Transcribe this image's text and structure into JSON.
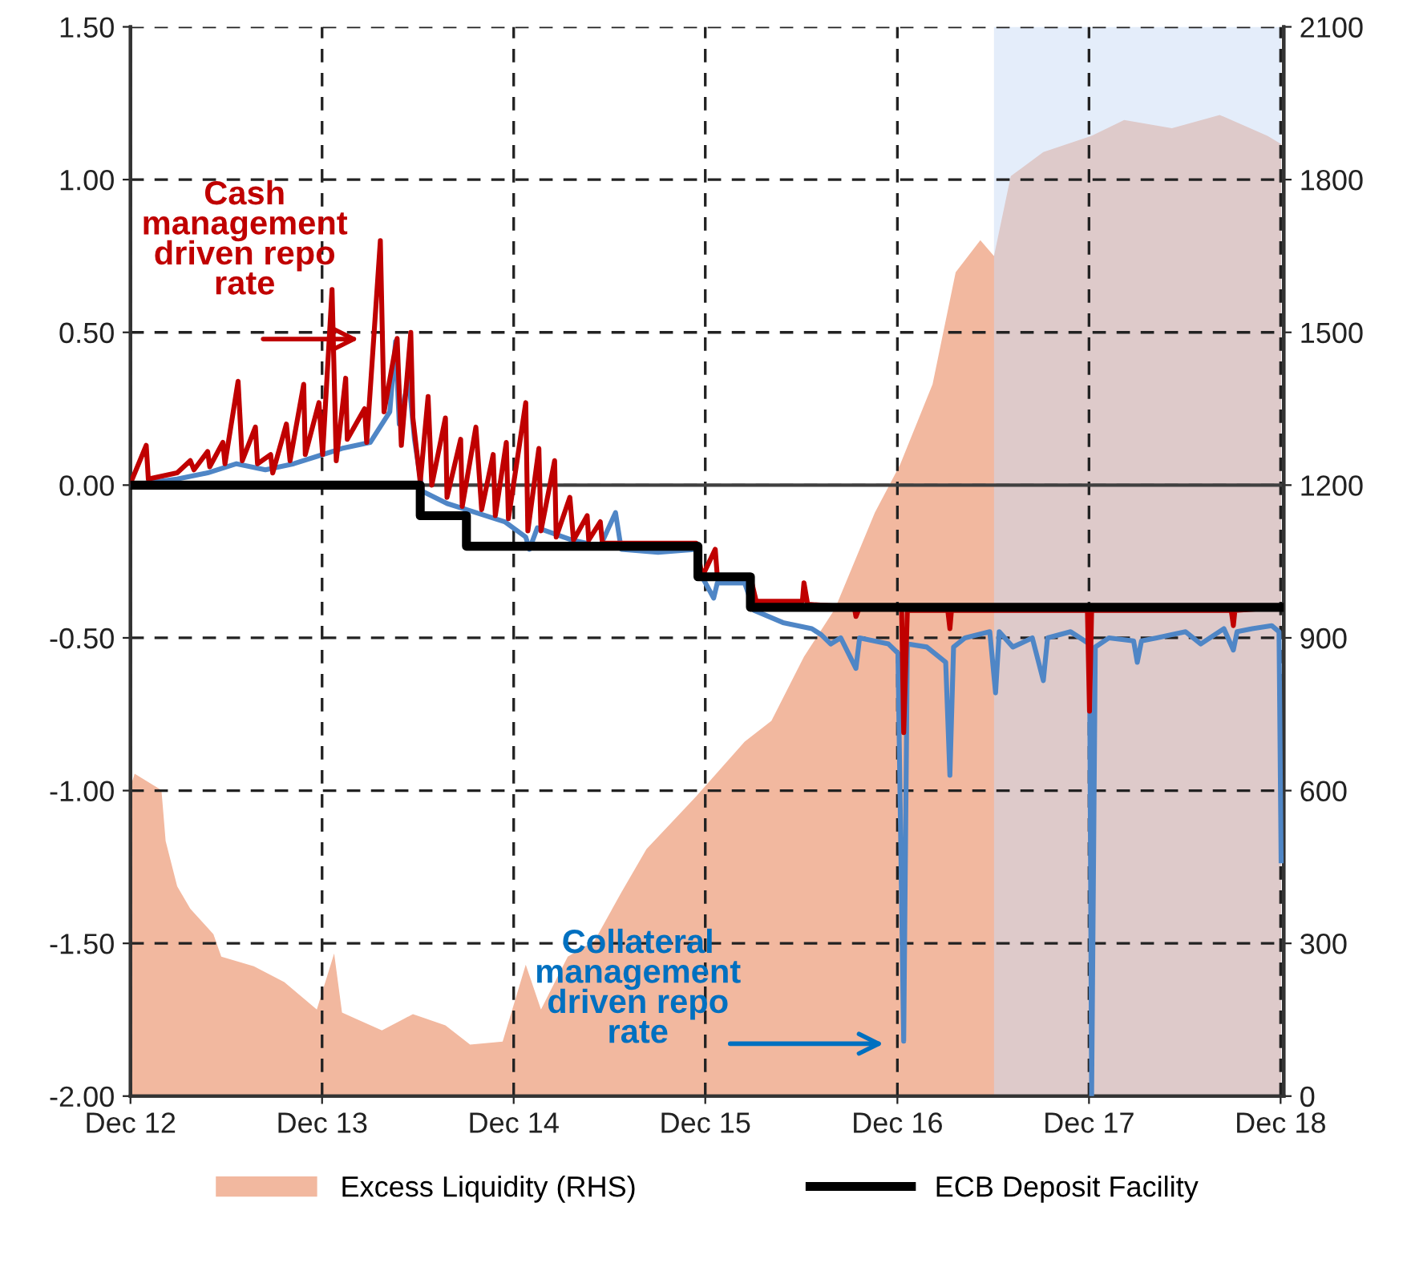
{
  "chart_data": {
    "type": "line",
    "xlim": [
      "2012-12-31",
      "2019-01-06"
    ],
    "xticks": [
      {
        "value": "2012-12-31",
        "label": "Dec 12"
      },
      {
        "value": "2013-12-31",
        "label": "Dec 13"
      },
      {
        "value": "2014-12-31",
        "label": "Dec 14"
      },
      {
        "value": "2015-12-31",
        "label": "Dec 15"
      },
      {
        "value": "2016-12-31",
        "label": "Dec 16"
      },
      {
        "value": "2017-12-31",
        "label": "Dec 17"
      },
      {
        "value": "2018-12-31",
        "label": "Dec 18"
      }
    ],
    "ylim": [
      -2,
      1.5
    ],
    "yticks": [
      {
        "value": -2,
        "label": "-2.00"
      },
      {
        "value": -1.5,
        "label": "-1.50"
      },
      {
        "value": -1,
        "label": "-1.00"
      },
      {
        "value": -0.5,
        "label": "-0.50"
      },
      {
        "value": 0,
        "label": "0.00"
      },
      {
        "value": 0.5,
        "label": "0.50"
      },
      {
        "value": 1,
        "label": "1.00"
      },
      {
        "value": 1.5,
        "label": "1.50"
      }
    ],
    "y2lim": [
      0,
      2100
    ],
    "y2ticks": [
      0,
      300,
      600,
      900,
      1200,
      1500,
      1800,
      2100
    ],
    "grid": true,
    "legend": "bottom",
    "ref_lines": [
      {
        "axis": "y",
        "value": 0,
        "color": "#404040"
      }
    ],
    "bands": [
      {
        "axis": "x",
        "from": "2017-07-03",
        "to": "2019-01-01",
        "color": "#c9dbf5"
      }
    ],
    "annotations": [
      "Cash\nmanagement\ndriven repo\nrate",
      "Collateral\nmanagement\ndriven repo\nrate"
    ],
    "series": [
      {
        "name": "Excess Liquidity (RHS)",
        "type": "area",
        "axis": "y2",
        "color": "#f2b89f",
        "x": [
          "2013-01-01",
          "2013-01-08",
          "2013-02-28",
          "2013-03-08",
          "2013-03-30",
          "2013-04-24",
          "2013-06-07",
          "2013-06-22",
          "2013-08-23",
          "2013-10-20",
          "2013-12-21",
          "2014-01-23",
          "2014-02-07",
          "2014-04-24",
          "2014-06-22",
          "2014-08-23",
          "2014-10-09",
          "2014-12-10",
          "2015-01-23",
          "2015-02-21",
          "2015-04-13",
          "2015-06-03",
          "2015-07-24",
          "2015-09-10",
          "2015-12-14",
          "2016-03-15",
          "2016-05-05",
          "2016-07-06",
          "2016-09-03",
          "2016-11-18",
          "2017-01-05",
          "2017-03-08",
          "2017-04-21",
          "2017-06-07",
          "2017-07-03",
          "2017-08-04",
          "2017-10-05",
          "2018-01-05",
          "2018-03-08",
          "2018-06-07",
          "2018-09-06",
          "2018-12-06",
          "2019-01-01"
        ],
        "values": [
          611,
          633,
          601,
          501,
          412,
          368,
          318,
          274,
          255,
          224,
          170,
          280,
          164,
          129,
          161,
          139,
          101,
          107,
          258,
          170,
          274,
          305,
          400,
          485,
          589,
          696,
          737,
          863,
          957,
          1146,
          1240,
          1398,
          1618,
          1681,
          1650,
          1807,
          1854,
          1886,
          1917,
          1901,
          1927,
          1886,
          1870
        ]
      },
      {
        "color": "#4f86c6",
        "x": [
          "2013-01-01",
          "2013-03-30",
          "2013-05-27",
          "2013-07-21",
          "2013-09-14",
          "2013-11-07",
          "2014-01-01",
          "2014-02-07",
          "2014-04-02",
          "2014-05-09",
          "2014-05-20",
          "2014-05-27",
          "2014-06-14",
          "2014-06-25",
          "2014-07-10",
          "2014-08-26",
          "2014-10-20",
          "2014-12-14",
          "2015-01-23",
          "2015-01-30",
          "2015-02-14",
          "2015-04-21",
          "2015-06-14",
          "2015-07-13",
          "2015-07-24",
          "2015-10-02",
          "2015-12-14",
          "2015-12-25",
          "2016-01-16",
          "2016-01-23",
          "2016-03-15",
          "2016-04-02",
          "2016-05-27",
          "2016-07-21",
          "2016-08-08",
          "2016-08-26",
          "2016-09-14",
          "2016-10-13",
          "2016-10-20",
          "2016-12-14",
          "2017-01-01",
          "2017-01-12",
          "2017-01-19",
          "2017-02-25",
          "2017-04-02",
          "2017-04-10",
          "2017-04-17",
          "2017-05-09",
          "2017-06-25",
          "2017-07-06",
          "2017-07-13",
          "2017-08-08",
          "2017-09-14",
          "2017-10-05",
          "2017-10-13",
          "2017-11-26",
          "2018-01-01",
          "2018-01-05",
          "2018-01-12",
          "2018-02-07",
          "2018-03-26",
          "2018-04-02",
          "2018-04-10",
          "2018-05-09",
          "2018-07-03",
          "2018-08-01",
          "2018-09-14",
          "2018-10-02",
          "2018-10-09",
          "2018-11-07",
          "2018-12-14",
          "2018-12-28",
          "2019-01-01"
        ],
        "values": [
          0.0,
          0.02,
          0.04,
          0.07,
          0.05,
          0.07,
          0.1,
          0.12,
          0.14,
          0.24,
          0.47,
          0.2,
          0.35,
          0.15,
          -0.02,
          -0.06,
          -0.09,
          -0.12,
          -0.17,
          -0.21,
          -0.14,
          -0.18,
          -0.2,
          -0.09,
          -0.21,
          -0.22,
          -0.21,
          -0.3,
          -0.37,
          -0.32,
          -0.32,
          -0.41,
          -0.45,
          -0.47,
          -0.49,
          -0.52,
          -0.5,
          -0.6,
          -0.5,
          -0.52,
          -0.55,
          -1.82,
          -0.52,
          -0.53,
          -0.58,
          -0.95,
          -0.53,
          -0.5,
          -0.48,
          -0.68,
          -0.48,
          -0.53,
          -0.5,
          -0.64,
          -0.5,
          -0.48,
          -0.52,
          -2.0,
          -0.53,
          -0.5,
          -0.51,
          -0.58,
          -0.51,
          -0.5,
          -0.48,
          -0.52,
          -0.47,
          -0.54,
          -0.48,
          -0.47,
          -0.46,
          -0.48,
          -1.23
        ]
      },
      {
        "color": "#c00000",
        "x": [
          "2013-01-01",
          "2013-01-30",
          "2013-02-03",
          "2013-03-30",
          "2013-04-24",
          "2013-05-01",
          "2013-05-27",
          "2013-05-31",
          "2013-06-25",
          "2013-06-29",
          "2013-07-24",
          "2013-08-01",
          "2013-08-26",
          "2013-08-30",
          "2013-09-24",
          "2013-09-28",
          "2013-10-24",
          "2013-10-31",
          "2013-11-26",
          "2013-11-29",
          "2013-12-25",
          "2014-01-01",
          "2014-01-19",
          "2014-01-27",
          "2014-02-14",
          "2014-02-17",
          "2014-03-22",
          "2014-03-26",
          "2014-04-21",
          "2014-04-28",
          "2014-05-23",
          "2014-05-31",
          "2014-06-18",
          "2014-06-22",
          "2014-07-06",
          "2014-07-21",
          "2014-07-28",
          "2014-08-23",
          "2014-08-26",
          "2014-09-21",
          "2014-09-24",
          "2014-10-20",
          "2014-10-31",
          "2014-11-22",
          "2014-11-26",
          "2014-12-17",
          "2014-12-21",
          "2015-01-23",
          "2015-01-27",
          "2015-02-17",
          "2015-02-21",
          "2015-03-19",
          "2015-03-22",
          "2015-04-17",
          "2015-04-24",
          "2015-05-20",
          "2015-05-23",
          "2015-06-14",
          "2015-06-18",
          "2015-07-17",
          "2015-08-19",
          "2015-09-14",
          "2015-11-04",
          "2015-12-14",
          "2015-12-25",
          "2016-01-19",
          "2016-01-23",
          "2016-03-26",
          "2016-04-06",
          "2016-07-03",
          "2016-07-06",
          "2016-07-13",
          "2016-10-10",
          "2016-10-13",
          "2016-10-20",
          "2017-01-08",
          "2017-01-12",
          "2017-01-19",
          "2017-04-06",
          "2017-04-10",
          "2017-04-13",
          "2017-08-15",
          "2017-12-28",
          "2018-01-01",
          "2018-01-05",
          "2018-09-28",
          "2018-10-02",
          "2018-10-05",
          "2019-01-01"
        ],
        "values": [
          0.01,
          0.13,
          0.02,
          0.04,
          0.08,
          0.05,
          0.11,
          0.06,
          0.14,
          0.07,
          0.34,
          0.08,
          0.19,
          0.07,
          0.1,
          0.04,
          0.2,
          0.08,
          0.33,
          0.1,
          0.27,
          0.1,
          0.64,
          0.08,
          0.35,
          0.15,
          0.25,
          0.14,
          0.8,
          0.24,
          0.48,
          0.13,
          0.5,
          0.22,
          0.01,
          0.29,
          0.0,
          0.22,
          -0.04,
          0.15,
          -0.07,
          0.19,
          -0.08,
          0.1,
          -0.1,
          0.14,
          -0.11,
          0.27,
          -0.15,
          0.12,
          -0.15,
          0.08,
          -0.17,
          -0.04,
          -0.18,
          -0.1,
          -0.18,
          -0.12,
          -0.19,
          -0.19,
          -0.19,
          -0.19,
          -0.19,
          -0.19,
          -0.3,
          -0.21,
          -0.3,
          -0.3,
          -0.38,
          -0.38,
          -0.32,
          -0.39,
          -0.4,
          -0.43,
          -0.4,
          -0.4,
          -0.81,
          -0.41,
          -0.41,
          -0.47,
          -0.41,
          -0.41,
          -0.41,
          -0.74,
          -0.41,
          -0.41,
          -0.46,
          -0.41,
          -0.4
        ]
      },
      {
        "name": "ECB Deposit Facility",
        "type": "step",
        "color": "#000000",
        "x": [
          "2013-01-01",
          "2014-07-06",
          "2014-10-02",
          "2015-12-17",
          "2016-03-26",
          "2019-01-01"
        ],
        "values": [
          0,
          -0.1,
          -0.2,
          -0.3,
          -0.4,
          -0.4
        ]
      }
    ]
  }
}
